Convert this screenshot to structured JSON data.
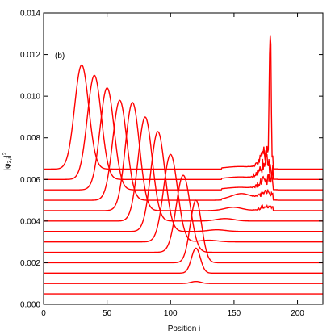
{
  "chart_data": {
    "type": "line",
    "title": "",
    "panel_label": "(b)",
    "xlabel": "Position i",
    "ylabel_main": "|φ",
    "ylabel_sub": "3,i",
    "ylabel_tail": "|",
    "ylabel_sup": "2",
    "xlim": [
      0,
      220
    ],
    "ylim": [
      0,
      0.014
    ],
    "x_ticks": [
      0,
      50,
      100,
      150,
      200
    ],
    "x_tick_labels": [
      "0",
      "50",
      "100",
      "150",
      "200"
    ],
    "y_ticks": [
      0,
      0.002,
      0.004,
      0.006,
      0.008,
      0.01,
      0.012,
      0.014
    ],
    "y_tick_labels": [
      "0.000",
      "0.002",
      "0.004",
      "0.006",
      "0.008",
      "0.010",
      "0.012",
      "0.014"
    ],
    "grid": false,
    "line_color": "#ff0000",
    "series": [
      {
        "baseline": 0.0005,
        "peak_x": 120,
        "peak_height": 0.0,
        "width": 6
      },
      {
        "baseline": 0.001,
        "peak_x": 120,
        "peak_height": 0.0001,
        "width": 4
      },
      {
        "baseline": 0.0015,
        "peak_x": 120,
        "peak_height": 0.0012,
        "width": 3.5
      },
      {
        "baseline": 0.002,
        "peak_x": 120,
        "peak_height": 0.003,
        "width": 4.5
      },
      {
        "baseline": 0.0025,
        "peak_x": 110,
        "peak_height": 0.0037,
        "width": 5.5
      },
      {
        "baseline": 0.003,
        "peak_x": 100,
        "peak_height": 0.0042,
        "width": 5.5
      },
      {
        "baseline": 0.0035,
        "peak_x": 90,
        "peak_height": 0.0048,
        "width": 5.5
      },
      {
        "baseline": 0.004,
        "peak_x": 80,
        "peak_height": 0.005,
        "width": 5.5
      },
      {
        "baseline": 0.0045,
        "peak_x": 70,
        "peak_height": 0.0052,
        "width": 5.5
      },
      {
        "baseline": 0.005,
        "peak_x": 60,
        "peak_height": 0.0048,
        "width": 5.5
      },
      {
        "baseline": 0.0055,
        "peak_x": 50,
        "peak_height": 0.0049,
        "width": 5.5
      },
      {
        "baseline": 0.006,
        "peak_x": 40,
        "peak_height": 0.005,
        "width": 5.5
      },
      {
        "baseline": 0.0065,
        "peak_x": 30,
        "peak_height": 0.005,
        "width": 5.5
      }
    ],
    "right_peaks": [
      {
        "x": 130,
        "height": 0.003
      },
      {
        "x": 140,
        "height": 0.0035
      },
      {
        "x": 150,
        "height": 0.004
      },
      {
        "x": 160,
        "height": 0.0043
      },
      {
        "x": 170,
        "height": 0.0037
      }
    ]
  }
}
